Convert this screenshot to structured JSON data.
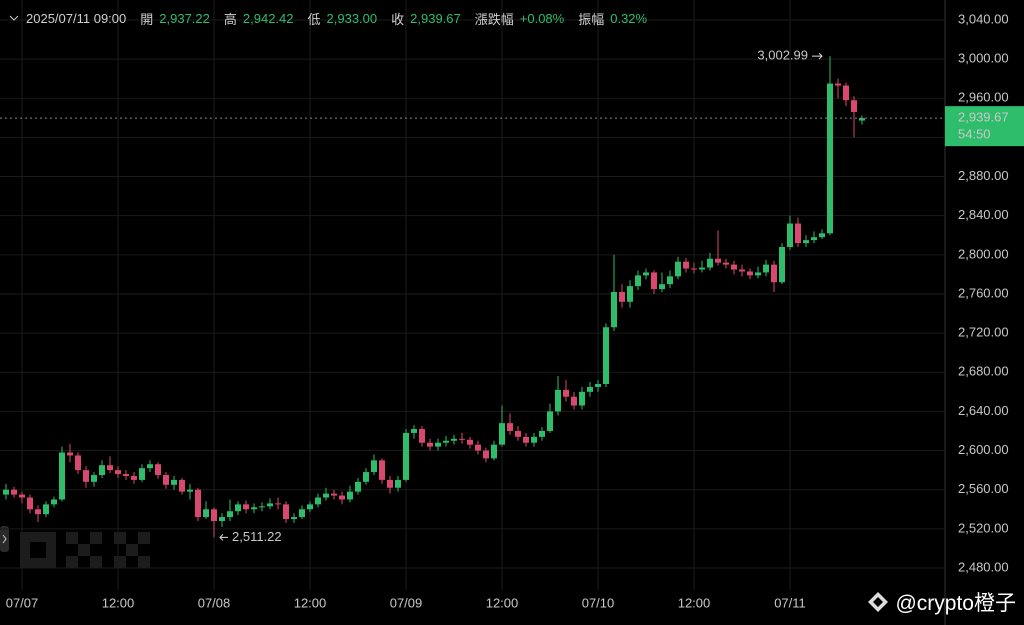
{
  "chart_data": {
    "type": "candlestick",
    "datetime": "2025/07/11 09:00",
    "info": [
      {
        "label": "開",
        "text": "2,937.22"
      },
      {
        "label": "高",
        "text": "2,942.42"
      },
      {
        "label": "低",
        "text": "2,933.00"
      },
      {
        "label": "收",
        "text": "2,939.67"
      },
      {
        "label": "漲跌幅",
        "text": "+0.08%"
      },
      {
        "label": "振幅",
        "text": "0.32%"
      }
    ],
    "categories": [
      null,
      null,
      "07/07",
      null,
      null,
      null,
      null,
      null,
      null,
      null,
      null,
      null,
      null,
      null,
      "12:00",
      null,
      null,
      null,
      null,
      null,
      null,
      null,
      null,
      null,
      null,
      null,
      "07/08",
      null,
      null,
      null,
      null,
      null,
      null,
      null,
      null,
      null,
      null,
      null,
      "12:00",
      null,
      null,
      null,
      null,
      null,
      null,
      null,
      null,
      null,
      null,
      null,
      "07/09",
      null,
      null,
      null,
      null,
      null,
      null,
      null,
      null,
      null,
      null,
      null,
      "12:00",
      null,
      null,
      null,
      null,
      null,
      null,
      null,
      null,
      null,
      null,
      null,
      "07/10",
      null,
      null,
      null,
      null,
      null,
      null,
      null,
      null,
      null,
      null,
      null,
      "12:00",
      null,
      null,
      null,
      null,
      null,
      null,
      null,
      null,
      null,
      null,
      null,
      "07/11",
      null,
      null,
      null,
      null,
      null,
      null,
      null,
      null,
      null
    ],
    "open": [
      2555,
      2560,
      2555,
      2552,
      2540,
      2535,
      2545,
      2550,
      2598,
      2595,
      2580,
      2568,
      2575,
      2585,
      2580,
      2576,
      2574,
      2570,
      2582,
      2586,
      2575,
      2565,
      2570,
      2558,
      2560,
      2532,
      2540,
      2528,
      2532,
      2538,
      2545,
      2540,
      2542,
      2543,
      2546,
      2545,
      2530,
      2532,
      2540,
      2545,
      2552,
      2556,
      2554,
      2550,
      2558,
      2568,
      2578,
      2590,
      2570,
      2562,
      2570,
      2618,
      2622,
      2608,
      2604,
      2608,
      2610,
      2612,
      2611,
      2606,
      2600,
      2592,
      2606,
      2628,
      2620,
      2614,
      2608,
      2614,
      2620,
      2640,
      2662,
      2655,
      2646,
      2660,
      2665,
      2668,
      2726,
      2762,
      2752,
      2768,
      2779,
      2782,
      2765,
      2770,
      2778,
      2793,
      2786,
      2785,
      2787,
      2796,
      2792,
      2790,
      2785,
      2783,
      2779,
      2782,
      2790,
      2772,
      2808,
      2832,
      2812,
      2815,
      2818,
      2822,
      2975,
      2973,
      2958,
      2937.22
    ],
    "high": [
      2566,
      2563,
      2558,
      2555,
      2544,
      2548,
      2553,
      2604,
      2607,
      2598,
      2584,
      2578,
      2590,
      2594,
      2584,
      2580,
      2578,
      2586,
      2590,
      2588,
      2578,
      2574,
      2572,
      2566,
      2562,
      2548,
      2542,
      2536,
      2550,
      2548,
      2549,
      2546,
      2547,
      2551,
      2552,
      2548,
      2536,
      2544,
      2548,
      2556,
      2562,
      2560,
      2558,
      2564,
      2572,
      2582,
      2596,
      2592,
      2574,
      2574,
      2622,
      2626,
      2625,
      2612,
      2612,
      2615,
      2616,
      2618,
      2614,
      2610,
      2603,
      2610,
      2646,
      2638,
      2625,
      2618,
      2618,
      2624,
      2648,
      2676,
      2672,
      2660,
      2665,
      2670,
      2672,
      2730,
      2800,
      2770,
      2774,
      2784,
      2786,
      2784,
      2782,
      2784,
      2798,
      2797,
      2792,
      2794,
      2802,
      2825,
      2796,
      2794,
      2790,
      2786,
      2788,
      2795,
      2794,
      2812,
      2840,
      2838,
      2820,
      2824,
      2826,
      3002.99,
      2980,
      2976,
      2962,
      2942.42
    ],
    "low": [
      2550,
      2552,
      2546,
      2536,
      2527,
      2532,
      2542,
      2548,
      2588,
      2576,
      2562,
      2563,
      2572,
      2577,
      2572,
      2570,
      2566,
      2568,
      2578,
      2571,
      2561,
      2560,
      2555,
      2550,
      2528,
      2530,
      2511.22,
      2522,
      2528,
      2534,
      2536,
      2536,
      2538,
      2540,
      2540,
      2526,
      2526,
      2530,
      2537,
      2542,
      2549,
      2550,
      2545,
      2547,
      2555,
      2565,
      2575,
      2566,
      2556,
      2558,
      2568,
      2612,
      2604,
      2600,
      2600,
      2604,
      2606,
      2607,
      2602,
      2596,
      2588,
      2590,
      2604,
      2616,
      2610,
      2604,
      2604,
      2610,
      2618,
      2636,
      2650,
      2642,
      2642,
      2655,
      2660,
      2665,
      2722,
      2746,
      2746,
      2764,
      2775,
      2760,
      2762,
      2766,
      2775,
      2782,
      2781,
      2782,
      2784,
      2789,
      2786,
      2780,
      2778,
      2775,
      2776,
      2778,
      2762,
      2770,
      2805,
      2808,
      2808,
      2812,
      2816,
      2820,
      2960,
      2952,
      2920,
      2933
    ],
    "close": [
      2560,
      2555,
      2552,
      2540,
      2535,
      2545,
      2550,
      2598,
      2595,
      2580,
      2568,
      2575,
      2585,
      2580,
      2576,
      2574,
      2570,
      2582,
      2586,
      2575,
      2565,
      2570,
      2558,
      2560,
      2532,
      2540,
      2528,
      2532,
      2538,
      2545,
      2540,
      2542,
      2543,
      2546,
      2545,
      2530,
      2532,
      2540,
      2545,
      2552,
      2556,
      2554,
      2550,
      2558,
      2568,
      2578,
      2590,
      2570,
      2562,
      2570,
      2618,
      2622,
      2608,
      2604,
      2608,
      2610,
      2612,
      2611,
      2606,
      2600,
      2592,
      2606,
      2628,
      2620,
      2614,
      2608,
      2614,
      2620,
      2640,
      2662,
      2655,
      2646,
      2660,
      2665,
      2668,
      2726,
      2762,
      2752,
      2768,
      2779,
      2782,
      2765,
      2770,
      2778,
      2793,
      2786,
      2785,
      2787,
      2796,
      2792,
      2790,
      2785,
      2783,
      2779,
      2782,
      2790,
      2772,
      2808,
      2832,
      2812,
      2815,
      2818,
      2822,
      2975,
      2973,
      2958,
      2946,
      2939.67
    ],
    "up_color": "#2ebd6b",
    "down_color": "#d9486e",
    "ylim": [
      2457.5,
      3060.4
    ],
    "yticks": [
      {
        "value": 2480,
        "label": "2,480.00"
      },
      {
        "value": 2520,
        "label": "2,520.00"
      },
      {
        "value": 2560,
        "label": "2,560.00"
      },
      {
        "value": 2600,
        "label": "2,600.00"
      },
      {
        "value": 2640,
        "label": "2,640.00"
      },
      {
        "value": 2680,
        "label": "2,680.00"
      },
      {
        "value": 2720,
        "label": "2,720.00"
      },
      {
        "value": 2760,
        "label": "2,760.00"
      },
      {
        "value": 2800,
        "label": "2,800.00"
      },
      {
        "value": 2840,
        "label": "2,840.00"
      },
      {
        "value": 2880,
        "label": "2,880.00"
      },
      {
        "value": 2920,
        "label": "2,920.00"
      },
      {
        "value": 2960,
        "label": "2,960.00"
      },
      {
        "value": 3000,
        "label": "3,000.00"
      },
      {
        "value": 3040,
        "label": "3,040.00"
      }
    ],
    "grid": true,
    "max_label": "3,002.99",
    "min_label": "2,511.22",
    "last_price_label": "2,939.67",
    "countdown": "54:50",
    "watermark": "@crypto橙子"
  }
}
